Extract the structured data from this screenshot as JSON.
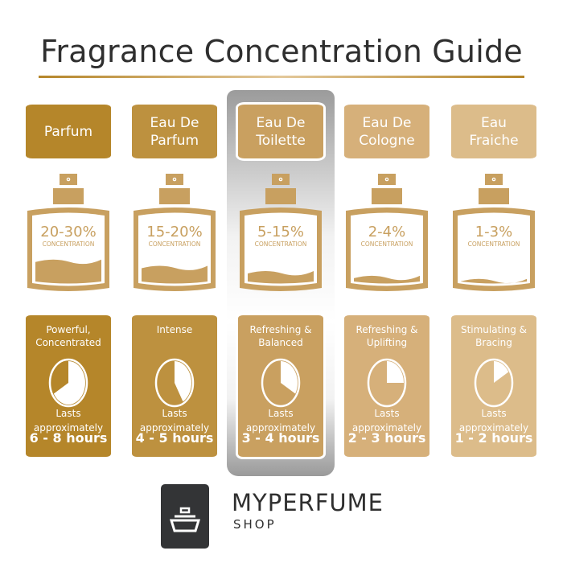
{
  "title": "Fragrance Concentration Guide",
  "highlighted_index": 2,
  "columns": [
    {
      "name_line1": "Parfum",
      "name_line2": "",
      "concentration": "20-30%",
      "concentration_label": "CONCENTRATION",
      "liquid_level": 0.42,
      "effect_line1": "Powerful,",
      "effect_line2": "Concentrated",
      "clock_hours": 8,
      "lasts_line1": "Lasts",
      "lasts_line2": "approximately",
      "duration": "6 - 8 hours",
      "color": "#b5862a"
    },
    {
      "name_line1": "Eau De",
      "name_line2": "Parfum",
      "concentration": "15-20%",
      "concentration_label": "CONCENTRATION",
      "liquid_level": 0.3,
      "effect_line1": "Intense",
      "effect_line2": "",
      "clock_hours": 5,
      "lasts_line1": "Lasts",
      "lasts_line2": "approximately",
      "duration": "4 - 5 hours",
      "color": "#bd913f"
    },
    {
      "name_line1": "Eau De",
      "name_line2": "Toilette",
      "concentration": "5-15%",
      "concentration_label": "CONCENTRATION",
      "liquid_level": 0.2,
      "effect_line1": "Refreshing &",
      "effect_line2": "Balanced",
      "clock_hours": 4,
      "lasts_line1": "Lasts",
      "lasts_line2": "approximately",
      "duration": "3 - 4 hours",
      "color": "#c9a060"
    },
    {
      "name_line1": "Eau De",
      "name_line2": "Cologne",
      "concentration": "2-4%",
      "concentration_label": "CONCENTRATION",
      "liquid_level": 0.11,
      "effect_line1": "Refreshing &",
      "effect_line2": "Uplifting",
      "clock_hours": 3,
      "lasts_line1": "Lasts",
      "lasts_line2": "approximately",
      "duration": "2 - 3 hours",
      "color": "#d6b07a"
    },
    {
      "name_line1": "Eau",
      "name_line2": "Fraiche",
      "concentration": "1-3%",
      "concentration_label": "CONCENTRATION",
      "liquid_level": 0.05,
      "effect_line1": "Stimulating &",
      "effect_line2": "Bracing",
      "clock_hours": 2,
      "lasts_line1": "Lasts",
      "lasts_line2": "approximately",
      "duration": "1 - 2 hours",
      "color": "#dcbc8a"
    }
  ],
  "bottle_color": "#c8a060",
  "brand": {
    "name": "MYPERFUME",
    "sub": "SHOP",
    "logo_color": "#333436"
  }
}
